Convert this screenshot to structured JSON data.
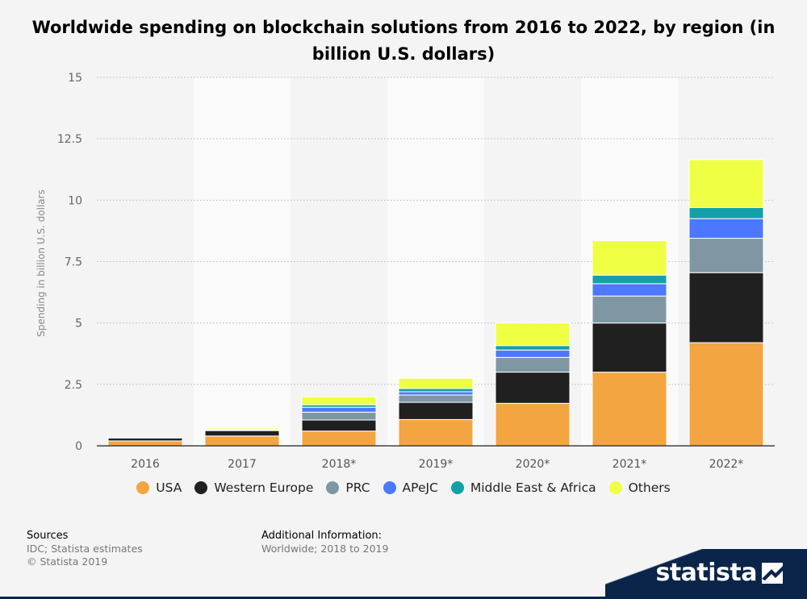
{
  "chart_data": {
    "type": "stacked-bar",
    "title": "Worldwide spending on blockchain solutions from 2016 to 2022, by region (in billion U.S. dollars)",
    "xlabel": "",
    "ylabel": "Spending in billion U.S. dollars",
    "ylim": [
      0,
      15
    ],
    "yticks": [
      0,
      2.5,
      5,
      7.5,
      10,
      12.5,
      15
    ],
    "ytick_labels": [
      "0",
      "2.5",
      "5",
      "7.5",
      "10",
      "12.5",
      "15"
    ],
    "grid": true,
    "legend_position": "bottom",
    "categories": [
      "2016",
      "2017",
      "2018*",
      "2019*",
      "2020*",
      "2021*",
      "2022*"
    ],
    "series": [
      {
        "name": "USA",
        "color": "#f2a540",
        "values": [
          0.2,
          0.4,
          0.6,
          1.07,
          1.73,
          3.0,
          4.2
        ]
      },
      {
        "name": "Western Europe",
        "color": "#202020",
        "values": [
          0.12,
          0.22,
          0.45,
          0.7,
          1.27,
          2.0,
          2.85
        ]
      },
      {
        "name": "PRC",
        "color": "#7f97a3",
        "values": [
          0.01,
          0.02,
          0.32,
          0.3,
          0.6,
          1.1,
          1.4
        ]
      },
      {
        "name": "APeJC",
        "color": "#4c78ff",
        "values": [
          0.01,
          0.02,
          0.2,
          0.13,
          0.3,
          0.5,
          0.8
        ]
      },
      {
        "name": "Middle East & Africa",
        "color": "#14a0a8",
        "values": [
          0.01,
          0.02,
          0.1,
          0.13,
          0.18,
          0.35,
          0.45
        ]
      },
      {
        "name": "Others",
        "color": "#eeff44",
        "values": [
          0.0,
          0.05,
          0.33,
          0.42,
          0.92,
          1.4,
          1.95
        ]
      }
    ]
  },
  "footer": {
    "sources_heading": "Sources",
    "sources_line1": "IDC; Statista estimates",
    "sources_line2": "© Statista 2019",
    "additional_heading": "Additional Information:",
    "additional_line1": "Worldwide; 2018 to 2019"
  },
  "brand": {
    "name": "statista",
    "color": "#0b2449"
  }
}
